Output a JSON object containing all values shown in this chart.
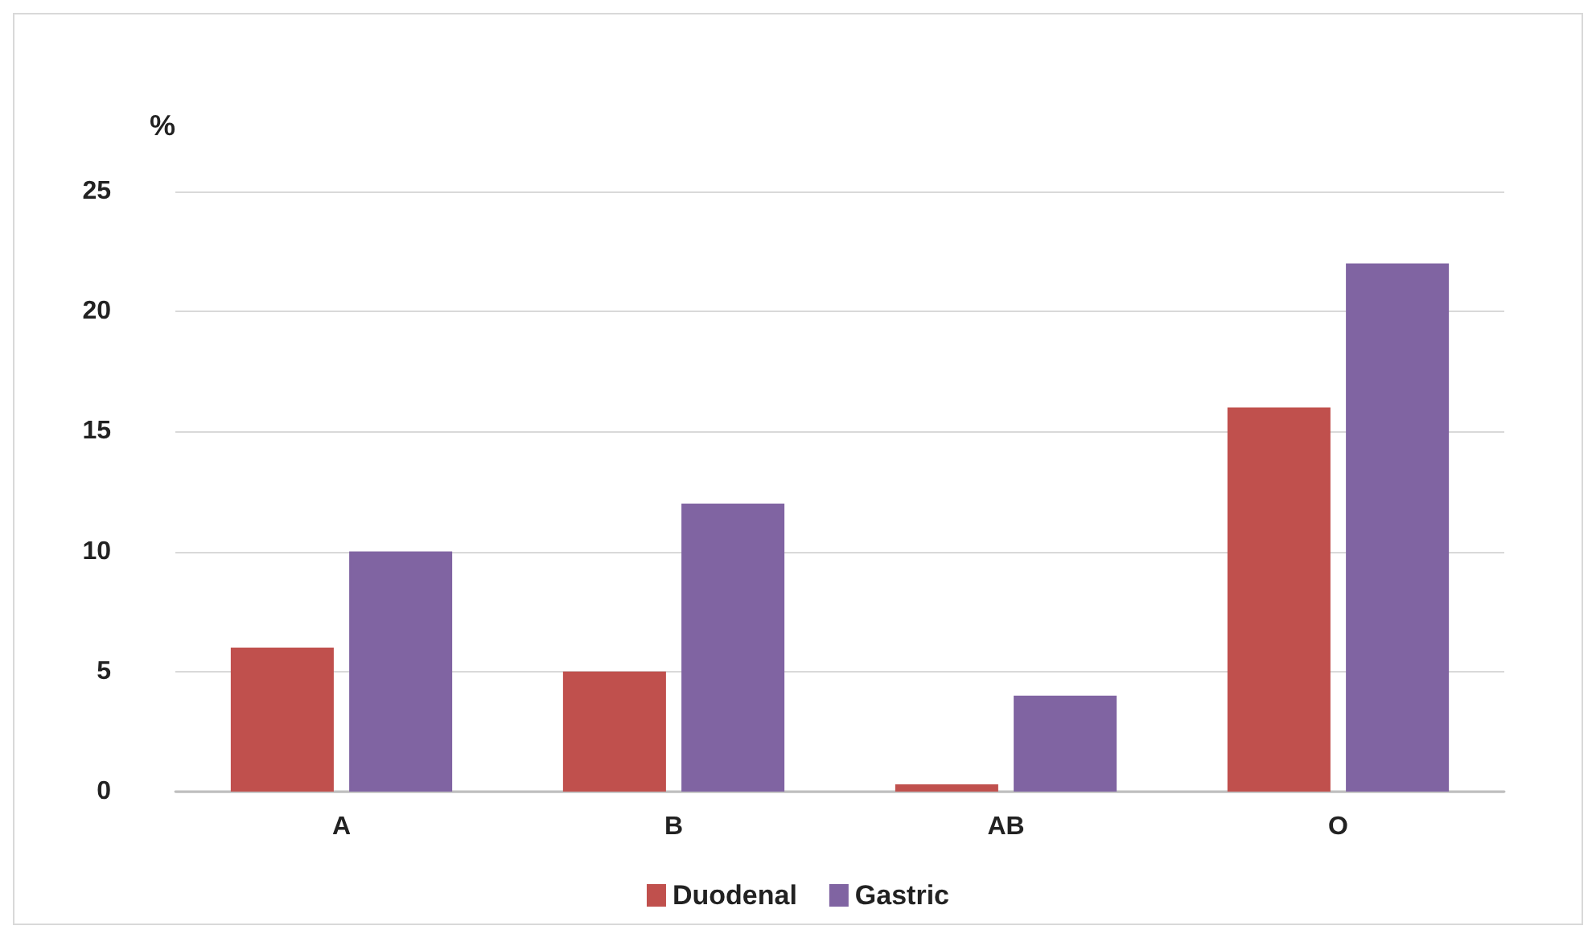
{
  "chart_data": {
    "type": "bar",
    "ylabel": "%",
    "categories": [
      "A",
      "B",
      "AB",
      "O"
    ],
    "series": [
      {
        "name": "Duodenal",
        "color": "#c0504d",
        "values": [
          6,
          5,
          0.3,
          16
        ]
      },
      {
        "name": "Gastric",
        "color": "#8064a2",
        "values": [
          10,
          12,
          4,
          22
        ]
      }
    ],
    "ylim": [
      0,
      25
    ],
    "yticks": [
      0,
      5,
      10,
      15,
      20,
      25
    ],
    "grid": "y",
    "legend": "bottom"
  }
}
